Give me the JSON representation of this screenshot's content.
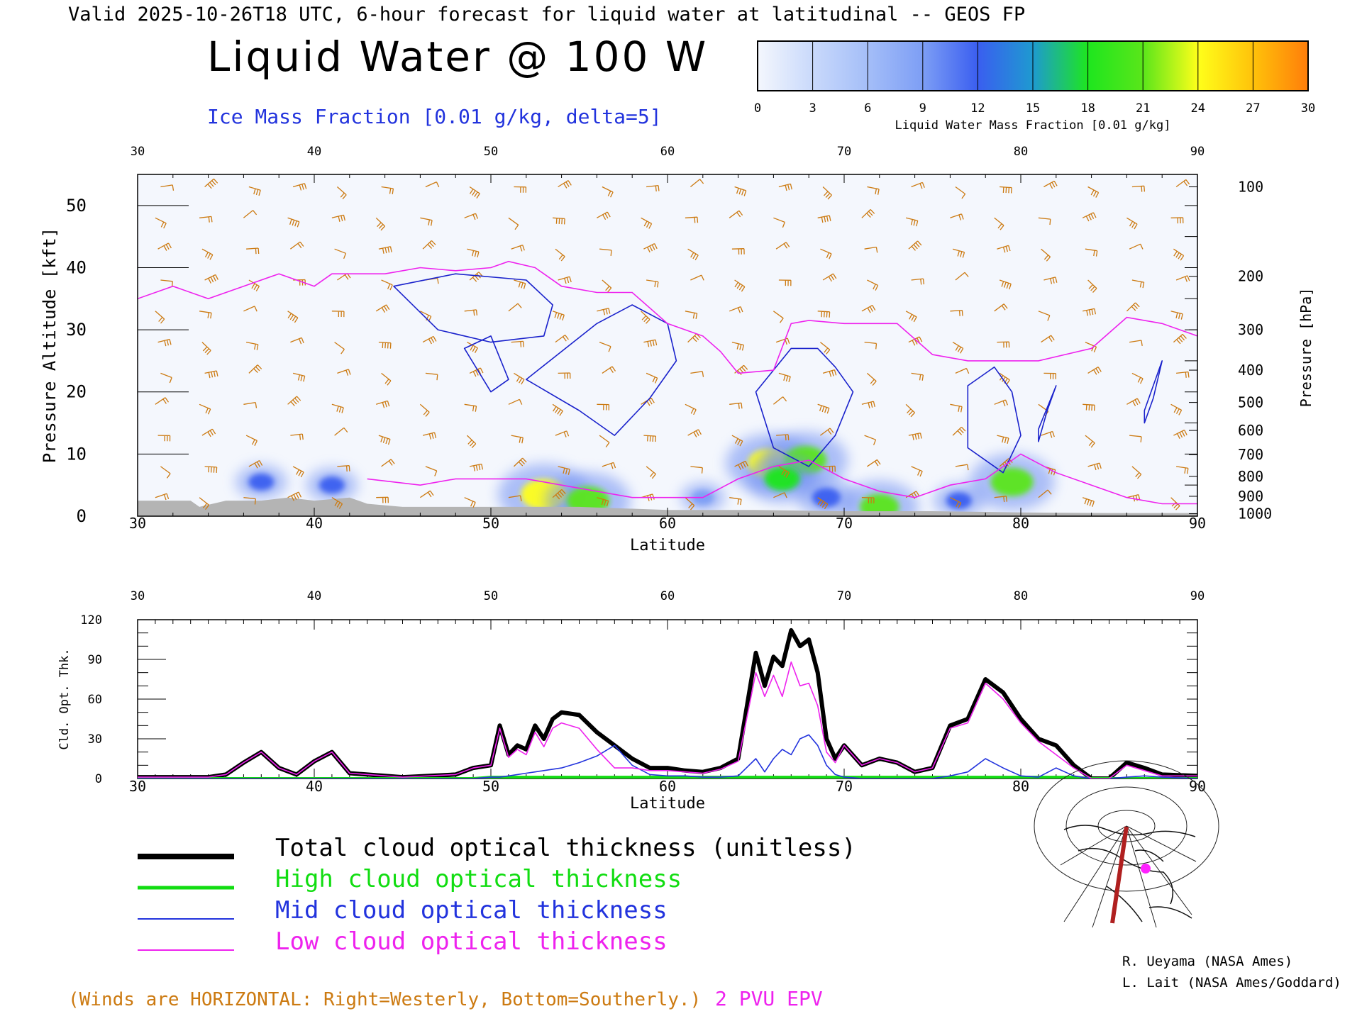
{
  "header": {
    "valid_line": "Valid 2025-10-26T18 UTC, 6-hour forecast for liquid water at latitudinal -- GEOS FP",
    "title": "Liquid Water @ 100 W",
    "subtitle": "Ice Mass Fraction [0.01 g/kg, delta=5]"
  },
  "colorbar": {
    "ticks": [
      "0",
      "3",
      "6",
      "9",
      "12",
      "15",
      "18",
      "21",
      "24",
      "27",
      "30"
    ],
    "label": "Liquid Water Mass Fraction [0.01 g/kg]",
    "colors": [
      "#f4f7fd",
      "#c9d9fb",
      "#a4bef8",
      "#7d9ef5",
      "#3a5ef0",
      "#1e9ad0",
      "#1ee61e",
      "#5ae61a",
      "#ffff1a",
      "#ffc20a",
      "#ff7d0a",
      "#ff2d0a"
    ]
  },
  "colors": {
    "total": "#000000",
    "high": "#11dd11",
    "mid": "#2233dd",
    "low": "#ee22ee",
    "wind": "#cc7a11",
    "ice_contour": "#1a22cc",
    "epv": "#ee22ee",
    "ground": "#b4b4b4"
  },
  "chart_data": [
    {
      "type": "heatmap",
      "xlabel": "Latitude",
      "ylabel": "Pressure Altitude [kft]",
      "ylabel_right": "Pressure [hPa]",
      "xlim": [
        30,
        90
      ],
      "ylim": [
        0,
        55
      ],
      "x_ticks": [
        "30",
        "40",
        "50",
        "60",
        "70",
        "80",
        "90"
      ],
      "y_ticks": [
        "0",
        "10",
        "20",
        "30",
        "40",
        "50"
      ],
      "pressure_ticks": [
        "100",
        "200",
        "300",
        "400",
        "500",
        "600",
        "700",
        "800",
        "900",
        "1000"
      ],
      "pressure_levels_kft": [
        53,
        38.6,
        30,
        23.5,
        18.3,
        13.8,
        9.9,
        6.4,
        3.2,
        0.4
      ],
      "liquid_water_blobs": [
        {
          "lat": 37,
          "alt": 5.5,
          "value": 10
        },
        {
          "lat": 41,
          "alt": 5.0,
          "value": 10
        },
        {
          "lat": 53,
          "alt": 3.5,
          "value": 22
        },
        {
          "lat": 55.5,
          "alt": 2.5,
          "value": 20
        },
        {
          "lat": 65.8,
          "alt": 8.5,
          "value": 21
        },
        {
          "lat": 67.8,
          "alt": 9.0,
          "value": 20
        },
        {
          "lat": 66.5,
          "alt": 6.0,
          "value": 16
        },
        {
          "lat": 69,
          "alt": 3.0,
          "value": 12
        },
        {
          "lat": 72,
          "alt": 1.5,
          "value": 18
        },
        {
          "lat": 79.5,
          "alt": 5.5,
          "value": 20
        },
        {
          "lat": 76.5,
          "alt": 2.5,
          "value": 10
        },
        {
          "lat": 62,
          "alt": 3.0,
          "value": 8
        }
      ],
      "ice_contours": [
        {
          "lat": [
            44.5,
            48,
            52,
            53.5,
            53,
            50,
            47,
            44.5
          ],
          "alt": [
            37,
            39,
            38,
            34,
            29,
            28,
            30,
            37
          ]
        },
        {
          "lat": [
            48.5,
            50,
            51,
            50,
            48.5
          ],
          "alt": [
            27,
            29,
            22,
            20,
            27
          ]
        },
        {
          "lat": [
            52,
            56,
            58,
            60,
            60.5,
            59,
            57,
            55,
            52
          ],
          "alt": [
            22,
            31,
            34,
            31,
            25,
            19,
            13,
            17,
            22
          ]
        },
        {
          "lat": [
            65,
            67,
            68.5,
            69.5,
            70.5,
            69.5,
            68,
            66,
            65
          ],
          "alt": [
            20,
            27,
            27,
            24,
            20,
            13,
            8,
            11,
            20
          ]
        },
        {
          "lat": [
            77,
            78.5,
            79.5,
            80,
            79,
            77,
            77
          ],
          "alt": [
            21,
            24,
            20,
            13,
            7,
            11,
            21
          ]
        },
        {
          "lat": [
            81,
            82,
            81.5,
            81,
            81
          ],
          "alt": [
            14,
            21,
            17,
            12,
            14
          ]
        },
        {
          "lat": [
            87,
            88,
            87.5,
            87,
            87
          ],
          "alt": [
            17,
            25,
            19,
            15,
            17
          ]
        }
      ],
      "epv_2pvu": {
        "lat": [
          30,
          32,
          34,
          36,
          38,
          40,
          41,
          44,
          46,
          48,
          50,
          51,
          52.5,
          54,
          56,
          58,
          60,
          61,
          62,
          63,
          64,
          66,
          67,
          68,
          70,
          72,
          73,
          75,
          77,
          79,
          81,
          84,
          86,
          88,
          90
        ],
        "alt": [
          35,
          37,
          35,
          37,
          39,
          37,
          39,
          39,
          40,
          39.5,
          40,
          41,
          40,
          37,
          36,
          36,
          31,
          30,
          29,
          26.5,
          23,
          23.5,
          31,
          31.5,
          31,
          31,
          31,
          26,
          25,
          25,
          25,
          27,
          32,
          31,
          29
        ]
      },
      "epv_low": {
        "lat": [
          43,
          46,
          48,
          50,
          52,
          54,
          56,
          58,
          60,
          62,
          64,
          66,
          68,
          70,
          72,
          74,
          76,
          78,
          80,
          82,
          84,
          86,
          88,
          90
        ],
        "alt": [
          6,
          5,
          6,
          6,
          6,
          5,
          4,
          3,
          3,
          3,
          6,
          8,
          9,
          6,
          4,
          3,
          5,
          6,
          10,
          7,
          5,
          3,
          2,
          2
        ]
      },
      "ground": {
        "lat": [
          30,
          33,
          33.5,
          35,
          37,
          38.5,
          40,
          42,
          43,
          45,
          50,
          55,
          60,
          65,
          70,
          75,
          80,
          85,
          90
        ],
        "alt": [
          2.5,
          2.5,
          1.5,
          2.5,
          2.5,
          3.0,
          2.5,
          3.0,
          2.0,
          1.5,
          1.5,
          1.5,
          1.0,
          1.0,
          0.8,
          0.8,
          0.6,
          0.5,
          0.5
        ]
      }
    },
    {
      "type": "line",
      "xlabel": "Latitude",
      "ylabel": "Cld. Opt. Thk.",
      "xlim": [
        30,
        90
      ],
      "ylim": [
        0,
        120
      ],
      "x_ticks": [
        "30",
        "40",
        "50",
        "60",
        "70",
        "80",
        "90"
      ],
      "y_ticks": [
        "0",
        "30",
        "60",
        "90",
        "120"
      ],
      "x": [
        30,
        34,
        35,
        36,
        37,
        38,
        39,
        40,
        41,
        42,
        45,
        48,
        49,
        50,
        50.5,
        51,
        51.5,
        52,
        52.5,
        53,
        53.5,
        54,
        55,
        56,
        57,
        58,
        59,
        60,
        61,
        62,
        63,
        64,
        65,
        65.5,
        66,
        66.5,
        67,
        67.5,
        68,
        68.5,
        69,
        69.5,
        70,
        71,
        72,
        73,
        74,
        75,
        76,
        77,
        78,
        79,
        80,
        81,
        82,
        83,
        84,
        85,
        86,
        87,
        88,
        90
      ],
      "series": [
        {
          "name": "Total cloud optical thickness (unitless)",
          "values": [
            1,
            1,
            3,
            12,
            20,
            8,
            3,
            13,
            20,
            4,
            1,
            3,
            8,
            10,
            40,
            18,
            25,
            22,
            40,
            30,
            45,
            50,
            48,
            35,
            25,
            15,
            8,
            8,
            6,
            5,
            8,
            15,
            95,
            70,
            92,
            85,
            112,
            100,
            105,
            80,
            30,
            15,
            25,
            10,
            15,
            12,
            5,
            8,
            40,
            45,
            75,
            65,
            45,
            30,
            25,
            10,
            0,
            0,
            12,
            8,
            3,
            2
          ]
        },
        {
          "name": "High cloud optical thickness",
          "values": [
            0,
            0,
            0,
            0,
            0,
            0,
            0,
            0,
            0,
            0,
            0,
            0,
            0,
            1,
            1,
            1,
            1,
            1,
            1,
            1,
            1,
            1,
            1,
            1,
            1,
            1,
            1,
            1,
            1,
            1,
            1,
            1,
            1,
            1,
            1,
            1,
            1,
            1,
            1,
            1,
            1,
            1,
            1,
            1,
            1,
            1,
            1,
            1,
            1,
            1,
            1,
            1,
            1,
            1,
            1,
            1,
            0,
            0,
            0,
            0,
            0,
            0
          ]
        },
        {
          "name": "Mid cloud optical thickness",
          "values": [
            0,
            0,
            0,
            0,
            0,
            0,
            0,
            0,
            0,
            0,
            0,
            0,
            0,
            1,
            1,
            2,
            3,
            4,
            5,
            6,
            7,
            8,
            12,
            17,
            25,
            10,
            3,
            2,
            2,
            1,
            1,
            2,
            15,
            5,
            15,
            22,
            18,
            30,
            33,
            25,
            10,
            3,
            1,
            0,
            0,
            0,
            0,
            0,
            2,
            5,
            15,
            8,
            2,
            1,
            8,
            2,
            0,
            0,
            1,
            2,
            1,
            0
          ]
        },
        {
          "name": "Low cloud optical thickness",
          "values": [
            1,
            1,
            3,
            12,
            20,
            8,
            3,
            13,
            20,
            4,
            1,
            3,
            8,
            10,
            38,
            16,
            22,
            18,
            35,
            24,
            38,
            42,
            38,
            22,
            8,
            8,
            6,
            6,
            5,
            4,
            7,
            13,
            80,
            62,
            78,
            62,
            88,
            70,
            72,
            55,
            20,
            12,
            25,
            10,
            15,
            12,
            5,
            8,
            38,
            42,
            72,
            60,
            42,
            28,
            18,
            8,
            0,
            0,
            10,
            6,
            2,
            2
          ]
        }
      ]
    }
  ],
  "legend": {
    "total": "Total cloud optical thickness (unitless)",
    "high": "High cloud optical thickness",
    "mid": "Mid cloud optical thickness",
    "low": "Low cloud optical thickness"
  },
  "footer": {
    "winds_note": "(Winds are HORIZONTAL: Right=Westerly, Bottom=Southerly.)",
    "epv_label": "2 PVU EPV",
    "credit_1": "R. Ueyama (NASA Ames)",
    "credit_2": "L. Lait (NASA Ames/Goddard)"
  }
}
